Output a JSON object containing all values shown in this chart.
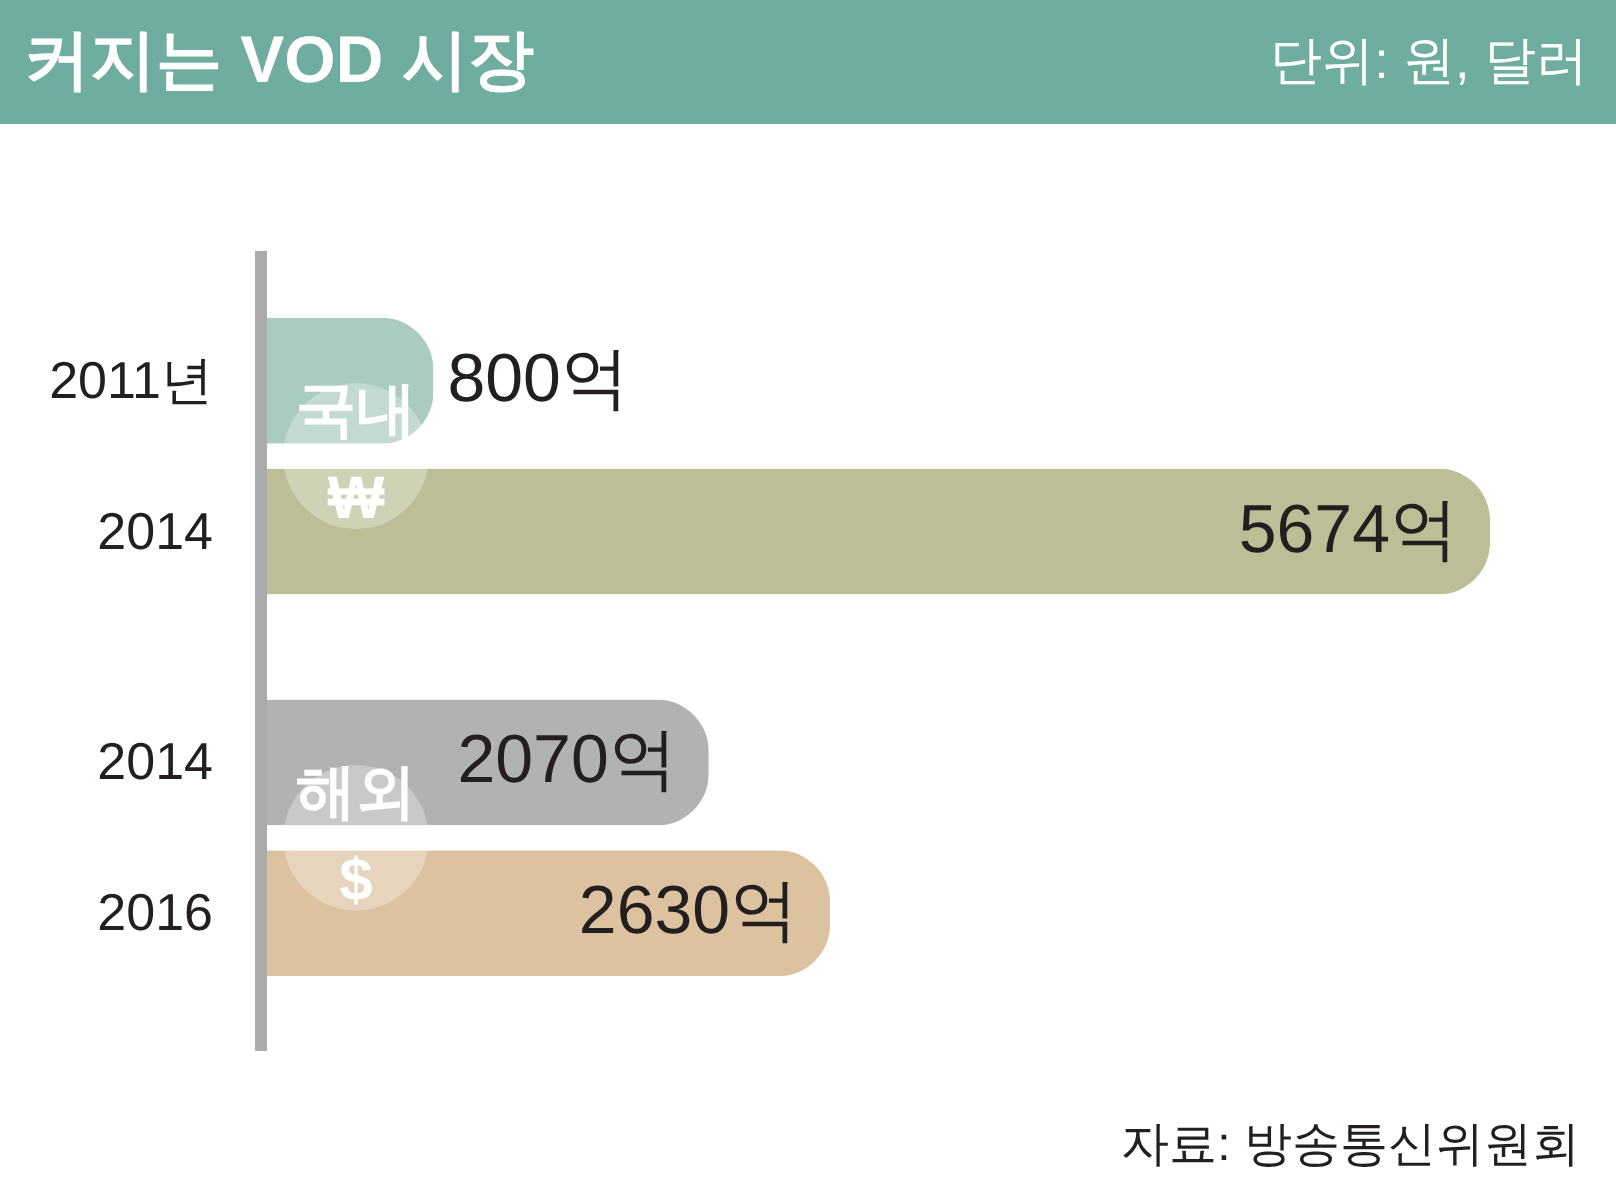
{
  "chart_data": {
    "type": "bar",
    "orientation": "horizontal",
    "title": "커지는 VOD 시장",
    "subtitle": "단위: 원, 달러",
    "categories": [
      "2011년",
      "2014",
      "2014",
      "2016"
    ],
    "series": [
      {
        "name": "국내 ₩",
        "colors": [
          "#a9cbc2",
          "#bcbf95",
          null,
          null
        ],
        "values": [
          800,
          5674,
          null,
          null
        ],
        "value_labels": [
          "800억",
          "5674억",
          null,
          null
        ]
      },
      {
        "name": "해외 $",
        "colors": [
          null,
          null,
          "#b2b2b2",
          "#ddc29f"
        ],
        "values": [
          null,
          null,
          2070,
          2630
        ],
        "value_labels": [
          null,
          null,
          "2070억",
          "2630억"
        ]
      }
    ],
    "annotations": [
      "자료: 방송통신위원회"
    ]
  }
}
